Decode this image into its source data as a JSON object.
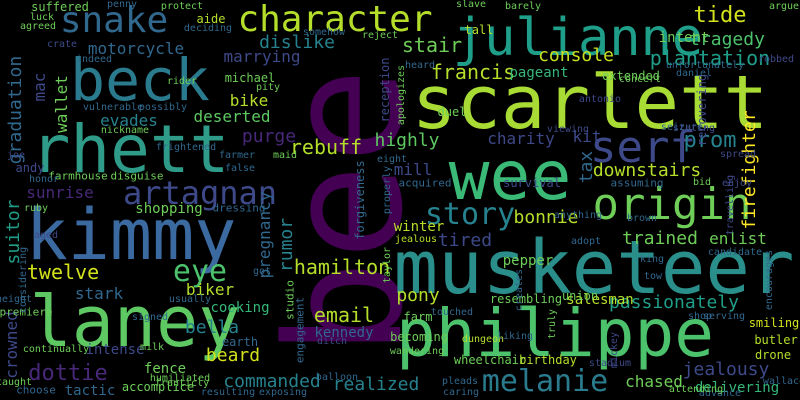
{
  "background": "#000000",
  "palette": {
    "purple": "#440154",
    "indigo": "#482878",
    "violet": "#3e4989",
    "blue": "#31688e",
    "teal": "#26828e",
    "green": "#1f9e89",
    "sea": "#35b779",
    "lime": "#6ece58",
    "yellowgreen": "#b5de2b",
    "yellow": "#fde725"
  },
  "words": [
    {
      "text": "bee",
      "color": "#440154"
    },
    {
      "text": "musketeer",
      "color": "#2a8f8b"
    },
    {
      "text": "scarlett",
      "color": "#a8db34"
    },
    {
      "text": "wee",
      "color": "#3aba76"
    },
    {
      "text": "kimmy",
      "color": "#3b6aa0"
    },
    {
      "text": "laney",
      "color": "#5ec962"
    },
    {
      "text": "philippe",
      "color": "#4cc26c"
    },
    {
      "text": "rhett",
      "color": "#2e9c89"
    },
    {
      "text": "beck",
      "color": "#2a7b8e"
    },
    {
      "text": "julianne",
      "color": "#1f9e89"
    },
    {
      "text": "character",
      "color": "#b5de2b"
    },
    {
      "text": "origin",
      "color": "#6ece58"
    },
    {
      "text": "serf",
      "color": "#3e4989"
    },
    {
      "text": "snake",
      "color": "#31688e"
    },
    {
      "text": "artagnan",
      "color": "#3e4989"
    },
    {
      "text": "story",
      "color": "#26828e"
    },
    {
      "text": "melanie",
      "color": "#2a7b8e"
    },
    {
      "text": "eye",
      "color": "#4cc26c"
    },
    {
      "text": "console",
      "color": "#c8e020"
    },
    {
      "text": "tide",
      "color": "#d2e21b"
    },
    {
      "text": "plantation",
      "color": "#1f9e89"
    },
    {
      "text": "tragedy",
      "color": "#4cc26c"
    },
    {
      "text": "francis",
      "color": "#b5de2b"
    },
    {
      "text": "stair",
      "color": "#6ece58"
    },
    {
      "text": "dislike",
      "color": "#26828e"
    },
    {
      "text": "motorcycle",
      "color": "#31688e"
    },
    {
      "text": "marrying",
      "color": "#3e4989"
    },
    {
      "text": "graduation",
      "color": "#31688e"
    },
    {
      "text": "mac",
      "color": "#3e4989"
    },
    {
      "text": "wallet",
      "color": "#6ece58"
    },
    {
      "text": "evades",
      "color": "#26828e"
    },
    {
      "text": "deserted",
      "color": "#5ec962"
    },
    {
      "text": "purge",
      "color": "#482878"
    },
    {
      "text": "bike",
      "color": "#b5de2b"
    },
    {
      "text": "highly",
      "color": "#5ec962"
    },
    {
      "text": "charity",
      "color": "#3e4989"
    },
    {
      "text": "kit",
      "color": "#3e4989"
    },
    {
      "text": "prom",
      "color": "#26828e"
    },
    {
      "text": "firefighter",
      "color": "#fde725"
    },
    {
      "text": "rebuff",
      "color": "#b5de2b"
    },
    {
      "text": "downstairs",
      "color": "#b5de2b"
    },
    {
      "text": "tax",
      "color": "#31688e"
    },
    {
      "text": "mill",
      "color": "#3e4989"
    },
    {
      "text": "sunrise",
      "color": "#482878"
    },
    {
      "text": "shopping",
      "color": "#6ece58"
    },
    {
      "text": "suitor",
      "color": "#1f9e89"
    },
    {
      "text": "twelve",
      "color": "#d2e21b"
    },
    {
      "text": "pregnancy",
      "color": "#31688e"
    },
    {
      "text": "rumor",
      "color": "#26828e"
    },
    {
      "text": "hamilton",
      "color": "#b5de2b"
    },
    {
      "text": "tired",
      "color": "#3e4989"
    },
    {
      "text": "bonnie",
      "color": "#b5de2b"
    },
    {
      "text": "trained",
      "color": "#6ece58"
    },
    {
      "text": "enlist",
      "color": "#6ece58"
    },
    {
      "text": "pony",
      "color": "#b5de2b"
    },
    {
      "text": "winter",
      "color": "#b5de2b"
    },
    {
      "text": "pepper",
      "color": "#6ece58"
    },
    {
      "text": "jealous",
      "color": "#b5de2b"
    },
    {
      "text": "stark",
      "color": "#31688e"
    },
    {
      "text": "biker",
      "color": "#b5de2b"
    },
    {
      "text": "bella",
      "color": "#26828e"
    },
    {
      "text": "cooking",
      "color": "#35b779"
    },
    {
      "text": "email",
      "color": "#b5de2b"
    },
    {
      "text": "kennedy",
      "color": "#31688e"
    },
    {
      "text": "passionately",
      "color": "#1f9e89"
    },
    {
      "text": "jealousy",
      "color": "#3e4989"
    },
    {
      "text": "salesman",
      "color": "#b5de2b"
    },
    {
      "text": "dottie",
      "color": "#482878"
    },
    {
      "text": "beard",
      "color": "#d2e21b"
    },
    {
      "text": "commanded",
      "color": "#26828e"
    },
    {
      "text": "realized",
      "color": "#26828e"
    },
    {
      "text": "chased",
      "color": "#6ece58"
    },
    {
      "text": "delivering",
      "color": "#35b779"
    },
    {
      "text": "crowned",
      "color": "#3e4989"
    },
    {
      "text": "intense",
      "color": "#3e4989"
    },
    {
      "text": "fence",
      "color": "#6ece58"
    },
    {
      "text": "tactic",
      "color": "#31688e"
    },
    {
      "text": "accomplice",
      "color": "#6ece58"
    },
    {
      "text": "smiling",
      "color": "#d2e21b"
    },
    {
      "text": "butler",
      "color": "#b5de2b"
    },
    {
      "text": "drone",
      "color": "#b5de2b"
    },
    {
      "text": "suffered",
      "color": "#6ece58"
    },
    {
      "text": "aide",
      "color": "#b5de2b"
    },
    {
      "text": "concert",
      "color": "#6ece58"
    },
    {
      "text": "intent",
      "color": "#6ece58"
    },
    {
      "text": "reception",
      "color": "#3e4989"
    },
    {
      "text": "pageant",
      "color": "#35b779"
    },
    {
      "text": "extended",
      "color": "#6ece58"
    },
    {
      "text": "recovering",
      "color": "#3e4989"
    },
    {
      "text": "survival",
      "color": "#3e4989"
    },
    {
      "text": "forgiveness",
      "color": "#31688e"
    },
    {
      "text": "andy",
      "color": "#3e4989"
    },
    {
      "text": "michael",
      "color": "#6ece58"
    },
    {
      "text": "apologizes",
      "color": "#6ece58"
    },
    {
      "text": "acquired",
      "color": "#31688e"
    },
    {
      "text": "assuming",
      "color": "#31688e"
    },
    {
      "text": "farmhouse",
      "color": "#6ece58"
    },
    {
      "text": "disguise",
      "color": "#6ece58"
    },
    {
      "text": "dressing",
      "color": "#31688e"
    },
    {
      "text": "studio",
      "color": "#6ece58"
    },
    {
      "text": "engagement",
      "color": "#31688e"
    },
    {
      "text": "earth",
      "color": "#31688e"
    },
    {
      "text": "wheelchair",
      "color": "#6ece58"
    },
    {
      "text": "birthday",
      "color": "#b5de2b"
    },
    {
      "text": "union",
      "color": "#6ece58"
    },
    {
      "text": "resembling",
      "color": "#6ece58"
    },
    {
      "text": "farm",
      "color": "#6ece58"
    },
    {
      "text": "becoming",
      "color": "#6ece58"
    },
    {
      "text": "premiere",
      "color": "#6ece58"
    },
    {
      "text": "humiliated",
      "color": "#6ece58"
    },
    {
      "text": "choose",
      "color": "#31688e"
    },
    {
      "text": "resulting",
      "color": "#31688e"
    },
    {
      "text": "exposing",
      "color": "#31688e"
    },
    {
      "text": "pleads",
      "color": "#31688e"
    },
    {
      "text": "caring",
      "color": "#31688e"
    },
    {
      "text": "wandering",
      "color": "#6ece58"
    },
    {
      "text": "stadium",
      "color": "#3e4989"
    },
    {
      "text": "protect",
      "color": "#6ece58"
    },
    {
      "text": "penny",
      "color": "#31688e"
    },
    {
      "text": "slave",
      "color": "#6ece58"
    },
    {
      "text": "barely",
      "color": "#6ece58"
    },
    {
      "text": "argue",
      "color": "#6ece58"
    },
    {
      "text": "tall",
      "color": "#b5de2b"
    },
    {
      "text": "reject",
      "color": "#6ece58"
    },
    {
      "text": "somehow",
      "color": "#31688e"
    },
    {
      "text": "rider",
      "color": "#6ece58"
    },
    {
      "text": "pity",
      "color": "#6ece58"
    },
    {
      "text": "frightened",
      "color": "#31688e"
    },
    {
      "text": "farmer",
      "color": "#31688e"
    },
    {
      "text": "maid",
      "color": "#6ece58"
    },
    {
      "text": "false",
      "color": "#31688e"
    },
    {
      "text": "signed",
      "color": "#31688e"
    },
    {
      "text": "usually",
      "color": "#31688e"
    },
    {
      "text": "milk",
      "color": "#6ece58"
    },
    {
      "text": "continually",
      "color": "#6ece58"
    },
    {
      "text": "ruby",
      "color": "#6ece58"
    },
    {
      "text": "aged",
      "color": "#3e4989"
    },
    {
      "text": "honor",
      "color": "#31688e"
    },
    {
      "text": "joe",
      "color": "#3e4989"
    },
    {
      "text": "agreed",
      "color": "#6ece58"
    },
    {
      "text": "luck",
      "color": "#6ece58"
    },
    {
      "text": "nickname",
      "color": "#6ece58"
    },
    {
      "text": "vulnerable",
      "color": "#31688e"
    },
    {
      "text": "indeed",
      "color": "#31688e"
    },
    {
      "text": "crate",
      "color": "#3e4989"
    },
    {
      "text": "deciding",
      "color": "#31688e"
    },
    {
      "text": "heard",
      "color": "#31688e"
    },
    {
      "text": "duel",
      "color": "#6ece58"
    },
    {
      "text": "viewing",
      "color": "#3e4989"
    },
    {
      "text": "seizure",
      "color": "#31688e"
    },
    {
      "text": "stating",
      "color": "#3e4989"
    },
    {
      "text": "spread",
      "color": "#3e4989"
    },
    {
      "text": "enjoy",
      "color": "#3e4989"
    },
    {
      "text": "bid",
      "color": "#6ece58"
    },
    {
      "text": "eight",
      "color": "#31688e"
    },
    {
      "text": "dungeon",
      "color": "#b5de2b"
    },
    {
      "text": "liking",
      "color": "#31688e"
    },
    {
      "text": "truly",
      "color": "#6ece58"
    },
    {
      "text": "mickey",
      "color": "#3e4989"
    },
    {
      "text": "anything",
      "color": "#31688e"
    },
    {
      "text": "adopt",
      "color": "#31688e"
    },
    {
      "text": "brown",
      "color": "#31688e"
    },
    {
      "text": "king",
      "color": "#31688e"
    },
    {
      "text": "tow",
      "color": "#31688e"
    },
    {
      "text": "shop",
      "color": "#31688e"
    },
    {
      "text": "serving",
      "color": "#31688e"
    },
    {
      "text": "candidate",
      "color": "#31688e"
    },
    {
      "text": "travelling",
      "color": "#3e4989"
    },
    {
      "text": "encourages",
      "color": "#31688e"
    },
    {
      "text": "wallace",
      "color": "#31688e"
    },
    {
      "text": "advance",
      "color": "#31688e"
    },
    {
      "text": "attending",
      "color": "#6ece58"
    },
    {
      "text": "taylor",
      "color": "#6ece58"
    },
    {
      "text": "creates",
      "color": "#31688e"
    },
    {
      "text": "robbed",
      "color": "#3e4989"
    },
    {
      "text": "daniel",
      "color": "#31688e"
    },
    {
      "text": "unfortunately",
      "color": "#31688e"
    },
    {
      "text": "antonio",
      "color": "#3e4989"
    },
    {
      "text": "considering",
      "color": "#31688e"
    },
    {
      "text": "possibly",
      "color": "#31688e"
    },
    {
      "text": "franticly",
      "color": "#6ece58"
    },
    {
      "text": "touched",
      "color": "#31688e"
    },
    {
      "text": "properly",
      "color": "#31688e"
    },
    {
      "text": "height",
      "color": "#31688e"
    },
    {
      "text": "taught",
      "color": "#6ece58"
    },
    {
      "text": "got",
      "color": "#31688e"
    },
    {
      "text": "balloon",
      "color": "#31688e"
    },
    {
      "text": "ditch",
      "color": "#3e4989"
    }
  ]
}
